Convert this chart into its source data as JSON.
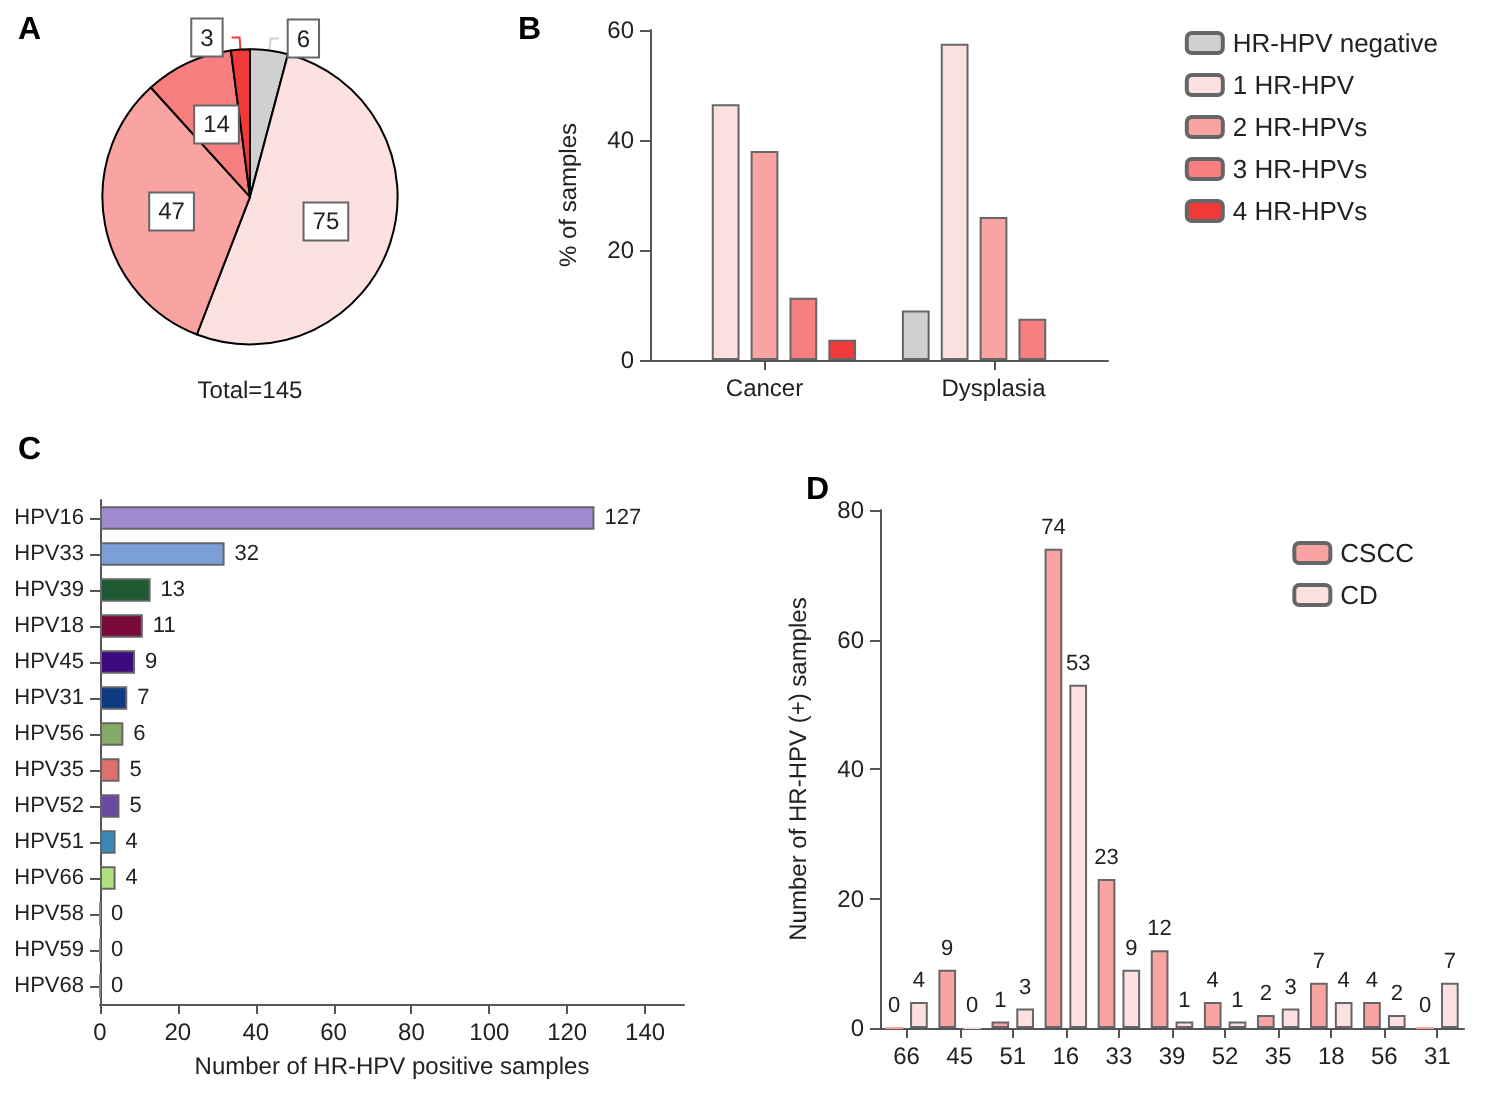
{
  "chart_data": [
    {
      "type": "pie",
      "title": "A",
      "categories": [
        null,
        null,
        null,
        null,
        null
      ],
      "values": [
        6,
        75,
        47,
        14,
        3
      ],
      "colors": [
        "#d0d0d0",
        "#fde0e0",
        "#f9a3a3",
        "#f77f7f",
        "#f03a3a"
      ],
      "data_labels": true,
      "annotations": [
        "Total=145"
      ]
    },
    {
      "type": "bar",
      "title": "B",
      "ylabel": "% of samples",
      "categories": [
        "Cancer",
        "Dysplasia"
      ],
      "series": [
        {
          "name": "HR-HPV negative",
          "color": "#d0d0d0",
          "values": [
            null,
            9
          ]
        },
        {
          "name": "1 HR-HPV",
          "color": "#fde0e0",
          "values": [
            46.5,
            57.5
          ]
        },
        {
          "name": "2 HR-HPVs",
          "color": "#f9a3a3",
          "values": [
            38,
            26
          ]
        },
        {
          "name": "3 HR-HPVs",
          "color": "#f77f7f",
          "values": [
            11.3,
            7.5
          ]
        },
        {
          "name": "4 HR-HPVs",
          "color": "#f03a3a",
          "values": [
            3.7,
            null
          ]
        }
      ],
      "ylim": [
        0,
        60
      ],
      "yticks": [
        0,
        20,
        40,
        60
      ],
      "grid": false,
      "legend": "top right"
    },
    {
      "type": "bar",
      "title": "C",
      "orientation": "horizontal",
      "xlabel": "Number of HR-HPV positive samples",
      "categories": [
        "HPV16",
        "HPV33",
        "HPV39",
        "HPV18",
        "HPV45",
        "HPV31",
        "HPV56",
        "HPV35",
        "HPV52",
        "HPV51",
        "HPV66",
        "HPV58",
        "HPV59",
        "HPV68"
      ],
      "values": [
        127,
        32,
        13,
        11,
        9,
        7,
        6,
        5,
        5,
        4,
        4,
        0,
        0,
        0
      ],
      "colors": [
        "#a08ad0",
        "#7ba0d8",
        "#1e5a32",
        "#7a0a3c",
        "#3e0a80",
        "#0e3a80",
        "#88a868",
        "#e07070",
        "#6a4aa0",
        "#3a8ab8",
        "#b0e080",
        "#888888",
        "#888888",
        "#888888"
      ],
      "xlim": [
        0,
        150
      ],
      "xticks": [
        0,
        20,
        40,
        60,
        80,
        100,
        120,
        140
      ],
      "data_labels": true,
      "grid": false
    },
    {
      "type": "bar",
      "title": "D",
      "ylabel": "Number of HR-HPV (+) samples",
      "categories": [
        "66",
        "45",
        "51",
        "16",
        "33",
        "39",
        "52",
        "35",
        "18",
        "56",
        "31"
      ],
      "series": [
        {
          "name": "CSCC",
          "color": "#f9a3a3",
          "values": [
            0,
            9,
            1,
            74,
            23,
            12,
            4,
            2,
            7,
            4,
            0
          ]
        },
        {
          "name": "CD",
          "color": "#fde0e0",
          "values": [
            4,
            0,
            3,
            53,
            9,
            1,
            1,
            3,
            4,
            2,
            7
          ]
        }
      ],
      "ylim": [
        0,
        80
      ],
      "yticks": [
        0,
        20,
        40,
        60,
        80
      ],
      "data_labels": true,
      "grid": false,
      "legend": "top right"
    }
  ]
}
